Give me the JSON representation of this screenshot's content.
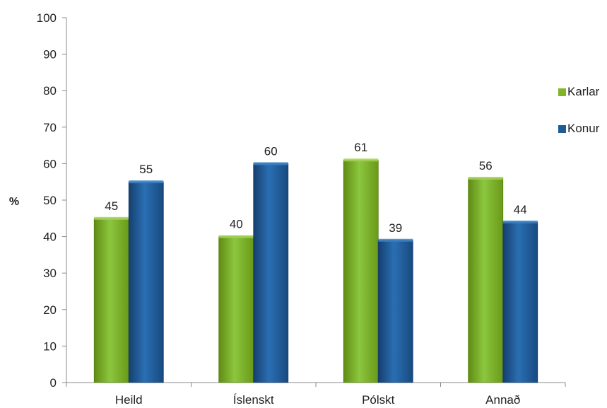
{
  "chart_data": {
    "type": "bar",
    "title": "",
    "xlabel": "",
    "ylabel": "%",
    "ylim": [
      0,
      100
    ],
    "yticks": [
      "0",
      "10",
      "20",
      "30",
      "40",
      "50",
      "60",
      "70",
      "80",
      "90",
      "100"
    ],
    "categories": [
      "Heild",
      "Íslenskt",
      "Pólskt",
      "Annað"
    ],
    "series": [
      {
        "name": "Karlar",
        "values": [
          45,
          40,
          61,
          56
        ],
        "color": "#7FB526"
      },
      {
        "name": "Konur",
        "values": [
          55,
          60,
          39,
          44
        ],
        "color": "#1F5A99"
      }
    ],
    "grid": false,
    "legend": "right"
  }
}
